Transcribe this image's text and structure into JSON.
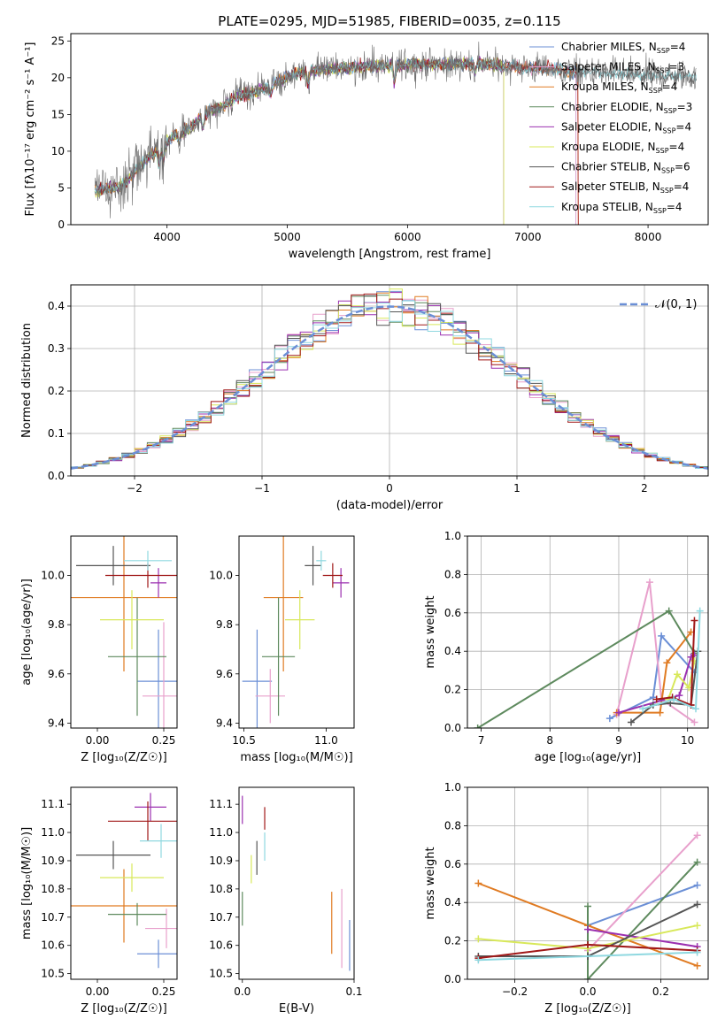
{
  "figure_title": "PLATE=0295, MJD=51985, FIBERID=0035, z=0.115",
  "colors": {
    "chabrier_miles": "#6b8fd6",
    "salpeter_miles": "#e8a0cc",
    "kroupa_miles": "#e07b22",
    "chabrier_elodie": "#5e8a5e",
    "salpeter_elodie": "#9b30b0",
    "kroupa_elodie": "#d8e85a",
    "chabrier_stelib": "#555555",
    "salpeter_stelib": "#a01818",
    "kroupa_stelib": "#8fd8e0",
    "normal": "#6b8fd6",
    "grid": "#b0b0b0"
  },
  "chart_data": [
    {
      "id": "spectrum",
      "type": "line",
      "xlabel": "wavelength [Angstrom, rest frame]",
      "ylabel": "Flux [fλ10⁻¹⁷ erg cm⁻² s⁻¹ A⁻¹]",
      "xlim": [
        3200,
        8500
      ],
      "ylim": [
        0,
        26
      ],
      "xticks": [
        4000,
        5000,
        6000,
        7000,
        8000
      ],
      "yticks": [
        0,
        5,
        10,
        15,
        20,
        25
      ],
      "grid": false,
      "legend_position": "top-right",
      "continuum": [
        [
          3400,
          4.6
        ],
        [
          3600,
          5.2
        ],
        [
          3700,
          6.5
        ],
        [
          3800,
          8.5
        ],
        [
          3950,
          10.5
        ],
        [
          4050,
          12.0
        ],
        [
          4200,
          13.2
        ],
        [
          4300,
          15.0
        ],
        [
          4450,
          16.0
        ],
        [
          4600,
          17.5
        ],
        [
          4750,
          18.2
        ],
        [
          4900,
          19.2
        ],
        [
          5050,
          20.5
        ],
        [
          5200,
          21.0
        ],
        [
          5400,
          21.3
        ],
        [
          5600,
          21.5
        ],
        [
          5800,
          21.6
        ],
        [
          6000,
          21.8
        ],
        [
          6200,
          21.8
        ],
        [
          6400,
          21.8
        ],
        [
          6600,
          21.9
        ],
        [
          6800,
          21.6
        ],
        [
          7000,
          21.4
        ],
        [
          7200,
          21.2
        ],
        [
          7300,
          20.9
        ],
        [
          7500,
          20.7
        ],
        [
          7800,
          20.5
        ],
        [
          8100,
          20.3
        ],
        [
          8400,
          20.2
        ]
      ],
      "models": [
        {
          "name": "Chabrier MILES, N_SSP=4",
          "label": "Chabrier MILES, N",
          "n": "4",
          "color_key": "chabrier_miles",
          "x_end": 7400
        },
        {
          "name": "Salpeter MILES, N_SSP=3",
          "label": "Salpeter MILES, N",
          "n": "3",
          "color_key": "salpeter_miles",
          "x_end": 7400
        },
        {
          "name": "Kroupa MILES, N_SSP=4",
          "label": "Kroupa MILES, N",
          "n": "4",
          "color_key": "kroupa_miles",
          "x_end": 7420
        },
        {
          "name": "Chabrier ELODIE, N_SSP=3",
          "label": "Chabrier ELODIE, N",
          "n": "3",
          "color_key": "chabrier_elodie",
          "x_end": 6800
        },
        {
          "name": "Salpeter ELODIE, N_SSP=4",
          "label": "Salpeter ELODIE, N",
          "n": "4",
          "color_key": "salpeter_elodie",
          "x_end": 6800
        },
        {
          "name": "Kroupa ELODIE, N_SSP=4",
          "label": "Kroupa ELODIE, N",
          "n": "4",
          "color_key": "kroupa_elodie",
          "x_end": 6800
        },
        {
          "name": "Chabrier STELIB, N_SSP=6",
          "label": "Chabrier STELIB, N",
          "n": "6",
          "color_key": "chabrier_stelib",
          "x_end": 8400
        },
        {
          "name": "Salpeter STELIB, N_SSP=4",
          "label": "Salpeter STELIB, N",
          "n": "4",
          "color_key": "salpeter_stelib",
          "x_end": 7420
        },
        {
          "name": "Kroupa STELIB, N_SSP=4",
          "label": "Kroupa STELIB, N",
          "n": "4",
          "color_key": "kroupa_stelib",
          "x_end": 8400
        }
      ]
    },
    {
      "id": "residuals",
      "type": "line",
      "xlabel": "(data-model)/error",
      "ylabel": "Normed distribution",
      "xlim": [
        -2.5,
        2.5
      ],
      "ylim": [
        0,
        0.45
      ],
      "xticks": [
        -2,
        -1,
        0,
        1,
        2
      ],
      "yticks": [
        0.0,
        0.1,
        0.2,
        0.3,
        0.4
      ],
      "grid": true,
      "legend": "𝒩(0, 1)",
      "legend_position": "top-right",
      "bin_width": 0.1
    },
    {
      "id": "age_vs_z",
      "type": "scatter",
      "xlabel": "Z [log₁₀(Z/Z☉)]",
      "ylabel": "age  [log₁₀(age/yr)]",
      "xlim": [
        -0.1,
        0.3
      ],
      "ylim": [
        9.38,
        10.16
      ],
      "xticks": [
        0.0,
        0.25
      ],
      "yticks": [
        9.4,
        9.6,
        9.8,
        10.0
      ],
      "grid": false,
      "points": [
        {
          "color_key": "chabrier_miles",
          "x": 0.23,
          "xerr": 0.08,
          "y": 9.57,
          "yerr": 0.21
        },
        {
          "color_key": "salpeter_miles",
          "x": 0.25,
          "xerr": 0.08,
          "y": 9.51,
          "yerr": 0.3
        },
        {
          "color_key": "kroupa_miles",
          "x": 0.1,
          "xerr": 0.22,
          "y": 9.91,
          "yerr": 0.3
        },
        {
          "color_key": "chabrier_elodie",
          "x": 0.15,
          "xerr": 0.11,
          "y": 9.67,
          "yerr": 0.24
        },
        {
          "color_key": "salpeter_elodie",
          "x": 0.23,
          "xerr": 0.03,
          "y": 9.97,
          "yerr": 0.06
        },
        {
          "color_key": "kroupa_elodie",
          "x": 0.13,
          "xerr": 0.12,
          "y": 9.82,
          "yerr": 0.12
        },
        {
          "color_key": "chabrier_stelib",
          "x": 0.06,
          "xerr": 0.14,
          "y": 10.04,
          "yerr": 0.08
        },
        {
          "color_key": "salpeter_stelib",
          "x": 0.19,
          "xerr": 0.16,
          "y": 10.0,
          "yerr": 0.05
        },
        {
          "color_key": "kroupa_stelib",
          "x": 0.19,
          "xerr": 0.09,
          "y": 10.06,
          "yerr": 0.04
        }
      ]
    },
    {
      "id": "age_vs_mass",
      "type": "scatter",
      "xlabel": "mass [log₁₀(M/M☉)]",
      "xlim": [
        10.47,
        11.17
      ],
      "ylim": [
        9.38,
        10.16
      ],
      "xticks": [
        10.5,
        11.0
      ],
      "yticks": [
        9.4,
        9.6,
        9.8,
        10.0
      ],
      "grid": false,
      "points": [
        {
          "color_key": "chabrier_miles",
          "x": 10.58,
          "xerr": 0.09,
          "y": 9.57,
          "yerr": 0.21
        },
        {
          "color_key": "salpeter_miles",
          "x": 10.66,
          "xerr": 0.09,
          "y": 9.51,
          "yerr": 0.11
        },
        {
          "color_key": "kroupa_miles",
          "x": 10.74,
          "xerr": 0.12,
          "y": 9.91,
          "yerr": 0.3
        },
        {
          "color_key": "chabrier_elodie",
          "x": 10.71,
          "xerr": 0.1,
          "y": 9.67,
          "yerr": 0.24
        },
        {
          "color_key": "salpeter_elodie",
          "x": 11.09,
          "xerr": 0.05,
          "y": 9.97,
          "yerr": 0.06
        },
        {
          "color_key": "kroupa_elodie",
          "x": 10.84,
          "xerr": 0.09,
          "y": 9.82,
          "yerr": 0.12
        },
        {
          "color_key": "chabrier_stelib",
          "x": 10.92,
          "xerr": 0.05,
          "y": 10.04,
          "yerr": 0.08
        },
        {
          "color_key": "salpeter_stelib",
          "x": 11.04,
          "xerr": 0.06,
          "y": 10.0,
          "yerr": 0.05
        },
        {
          "color_key": "kroupa_stelib",
          "x": 10.97,
          "xerr": 0.03,
          "y": 10.06,
          "yerr": 0.04
        }
      ]
    },
    {
      "id": "weight_vs_age",
      "type": "line",
      "xlabel": "age  [log₁₀(age/yr)]",
      "ylabel": "mass weight",
      "xlim": [
        6.8,
        10.3
      ],
      "ylim": [
        0.0,
        1.0
      ],
      "xticks": [
        7,
        8,
        9,
        10
      ],
      "yticks": [
        0.0,
        0.2,
        0.4,
        0.6,
        0.8,
        1.0
      ],
      "grid": true,
      "series": [
        {
          "color_key": "chabrier_miles",
          "x": [
            8.87,
            9.5,
            9.62,
            10.1
          ],
          "y": [
            0.05,
            0.16,
            0.48,
            0.29
          ]
        },
        {
          "color_key": "salpeter_miles",
          "x": [
            8.97,
            9.45,
            9.62,
            10.1
          ],
          "y": [
            0.07,
            0.76,
            0.15,
            0.03
          ]
        },
        {
          "color_key": "kroupa_miles",
          "x": [
            8.97,
            9.6,
            9.7,
            10.05
          ],
          "y": [
            0.08,
            0.08,
            0.34,
            0.5
          ]
        },
        {
          "color_key": "chabrier_elodie",
          "x": [
            6.95,
            9.73,
            10.1
          ],
          "y": [
            0.0,
            0.61,
            0.39
          ]
        },
        {
          "color_key": "salpeter_elodie",
          "x": [
            9.0,
            9.88,
            10.05,
            10.1
          ],
          "y": [
            0.08,
            0.17,
            0.37,
            0.38
          ]
        },
        {
          "color_key": "kroupa_elodie",
          "x": [
            9.72,
            9.85,
            10.02,
            10.1
          ],
          "y": [
            0.15,
            0.28,
            0.21,
            0.35
          ]
        },
        {
          "color_key": "chabrier_stelib",
          "x": [
            9.18,
            9.5,
            9.75,
            10.05,
            10.15
          ],
          "y": [
            0.03,
            0.12,
            0.13,
            0.12,
            0.4
          ]
        },
        {
          "color_key": "salpeter_stelib",
          "x": [
            9.55,
            9.78,
            10.05,
            10.1
          ],
          "y": [
            0.15,
            0.16,
            0.12,
            0.56
          ]
        },
        {
          "color_key": "kroupa_stelib",
          "x": [
            9.35,
            9.8,
            10.12,
            10.18
          ],
          "y": [
            0.1,
            0.15,
            0.1,
            0.61
          ]
        }
      ]
    },
    {
      "id": "mass_vs_z",
      "type": "scatter",
      "xlabel": "Z [log₁₀(Z/Z☉)]",
      "ylabel": "mass [log₁₀(M/M☉)]",
      "xlim": [
        -0.1,
        0.3
      ],
      "ylim": [
        10.48,
        11.16
      ],
      "xticks": [
        0.0,
        0.25
      ],
      "yticks": [
        10.5,
        10.6,
        10.7,
        10.8,
        10.9,
        11.0,
        11.1
      ],
      "grid": false,
      "points": [
        {
          "color_key": "chabrier_miles",
          "x": 0.23,
          "xerr": 0.08,
          "y": 10.57,
          "yerr": 0.05
        },
        {
          "color_key": "salpeter_miles",
          "x": 0.26,
          "xerr": 0.08,
          "y": 10.66,
          "yerr": 0.07
        },
        {
          "color_key": "kroupa_miles",
          "x": 0.1,
          "xerr": 0.22,
          "y": 10.74,
          "yerr": 0.13
        },
        {
          "color_key": "chabrier_elodie",
          "x": 0.15,
          "xerr": 0.11,
          "y": 10.71,
          "yerr": 0.04
        },
        {
          "color_key": "salpeter_elodie",
          "x": 0.2,
          "xerr": 0.06,
          "y": 11.09,
          "yerr": 0.05
        },
        {
          "color_key": "kroupa_elodie",
          "x": 0.13,
          "xerr": 0.12,
          "y": 10.84,
          "yerr": 0.05
        },
        {
          "color_key": "chabrier_stelib",
          "x": 0.06,
          "xerr": 0.14,
          "y": 10.92,
          "yerr": 0.05
        },
        {
          "color_key": "salpeter_stelib",
          "x": 0.19,
          "xerr": 0.15,
          "y": 11.04,
          "yerr": 0.07
        },
        {
          "color_key": "kroupa_stelib",
          "x": 0.24,
          "xerr": 0.08,
          "y": 10.97,
          "yerr": 0.06
        }
      ]
    },
    {
      "id": "mass_vs_ebv",
      "type": "scatter",
      "xlabel": "E(B-V)",
      "xlim": [
        -0.003,
        0.1
      ],
      "ylim": [
        10.48,
        11.16
      ],
      "xticks": [
        0.0,
        0.1
      ],
      "yticks": [
        10.5,
        10.6,
        10.7,
        10.8,
        10.9,
        11.0,
        11.1
      ],
      "grid": false,
      "points": [
        {
          "color_key": "chabrier_miles",
          "x": 0.096,
          "xerr": 0.0,
          "y": 10.6,
          "yerr": 0.09
        },
        {
          "color_key": "salpeter_miles",
          "x": 0.089,
          "xerr": 0.0,
          "y": 10.66,
          "yerr": 0.14
        },
        {
          "color_key": "kroupa_miles",
          "x": 0.08,
          "xerr": 0.0,
          "y": 10.68,
          "yerr": 0.11
        },
        {
          "color_key": "chabrier_elodie",
          "x": 0.0,
          "xerr": 0.0,
          "y": 10.73,
          "yerr": 0.06
        },
        {
          "color_key": "salpeter_elodie",
          "x": 0.0,
          "xerr": 0.0,
          "y": 11.08,
          "yerr": 0.05
        },
        {
          "color_key": "kroupa_elodie",
          "x": 0.008,
          "xerr": 0.0,
          "y": 10.87,
          "yerr": 0.05
        },
        {
          "color_key": "chabrier_stelib",
          "x": 0.013,
          "xerr": 0.0,
          "y": 10.91,
          "yerr": 0.06
        },
        {
          "color_key": "salpeter_stelib",
          "x": 0.02,
          "xerr": 0.0,
          "y": 11.05,
          "yerr": 0.04
        },
        {
          "color_key": "kroupa_stelib",
          "x": 0.02,
          "xerr": 0.0,
          "y": 10.95,
          "yerr": 0.05
        }
      ]
    },
    {
      "id": "weight_vs_z",
      "type": "line",
      "xlabel": "Z [log₁₀(Z/Z☉)]",
      "ylabel": "mass weight",
      "xlim": [
        -0.33,
        0.33
      ],
      "ylim": [
        0.0,
        1.0
      ],
      "xticks": [
        -0.2,
        0.0,
        0.2
      ],
      "yticks": [
        0.0,
        0.2,
        0.4,
        0.6,
        0.8,
        1.0
      ],
      "grid": true,
      "series": [
        {
          "color_key": "chabrier_miles",
          "x": [
            0.0,
            0.3
          ],
          "y": [
            0.28,
            0.49
          ]
        },
        {
          "color_key": "salpeter_miles",
          "x": [
            0.0,
            0.3
          ],
          "y": [
            0.15,
            0.75
          ]
        },
        {
          "color_key": "kroupa_miles",
          "x": [
            -0.3,
            0.0,
            0.3
          ],
          "y": [
            0.5,
            0.28,
            0.07
          ]
        },
        {
          "color_key": "chabrier_elodie",
          "x": [
            0.0,
            0.0,
            0.3
          ],
          "y": [
            0.38,
            0.0,
            0.61
          ]
        },
        {
          "color_key": "salpeter_elodie",
          "x": [
            0.0,
            0.3
          ],
          "y": [
            0.26,
            0.17
          ]
        },
        {
          "color_key": "kroupa_elodie",
          "x": [
            -0.3,
            0.0,
            0.3
          ],
          "y": [
            0.21,
            0.16,
            0.28
          ]
        },
        {
          "color_key": "chabrier_stelib",
          "x": [
            -0.3,
            0.0,
            0.0,
            0.3
          ],
          "y": [
            0.12,
            0.12,
            0.12,
            0.39
          ]
        },
        {
          "color_key": "salpeter_stelib",
          "x": [
            -0.3,
            0.0,
            0.3
          ],
          "y": [
            0.11,
            0.18,
            0.15
          ]
        },
        {
          "color_key": "kroupa_stelib",
          "x": [
            -0.3,
            0.3
          ],
          "y": [
            0.1,
            0.14
          ]
        }
      ]
    }
  ]
}
